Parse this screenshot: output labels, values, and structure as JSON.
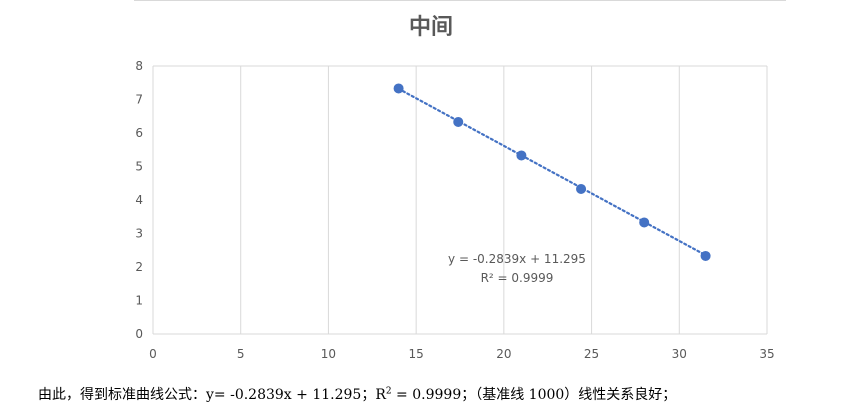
{
  "chart_data": {
    "type": "scatter",
    "title": "中间",
    "xlabel": "",
    "ylabel": "",
    "xlim": [
      0,
      35
    ],
    "ylim": [
      0,
      8
    ],
    "x_ticks": [
      "0",
      "5",
      "10",
      "15",
      "20",
      "25",
      "30",
      "35"
    ],
    "y_ticks": [
      "0",
      "1",
      "2",
      "3",
      "4",
      "5",
      "6",
      "7",
      "8"
    ],
    "grid": "vertical",
    "series": [
      {
        "x": [
          14.0,
          17.4,
          21.0,
          24.4,
          28.0,
          31.5
        ],
        "y": [
          7.33,
          6.33,
          5.33,
          4.33,
          3.33,
          2.33
        ]
      }
    ],
    "trendline": {
      "type": "linear",
      "slope": -0.2839,
      "intercept": 11.295,
      "x_range": [
        14.0,
        31.5
      ],
      "equation_label": "y = -0.2839x + 11.295",
      "r2_label_prefix": "R² = ",
      "r2_value": "0.9999"
    },
    "colors": {
      "marker": "#4472C4",
      "trendline": "#4472C4",
      "grid": "#d9d9d9",
      "axis_text": "#595959",
      "title": "#595959"
    }
  },
  "caption": {
    "text_before": "由此，得到标准曲线公式：y= -0.2839x + 11.295；R",
    "sup": "2",
    "text_after": " = 0.9999；（基准线 1000）线性关系良好；"
  }
}
